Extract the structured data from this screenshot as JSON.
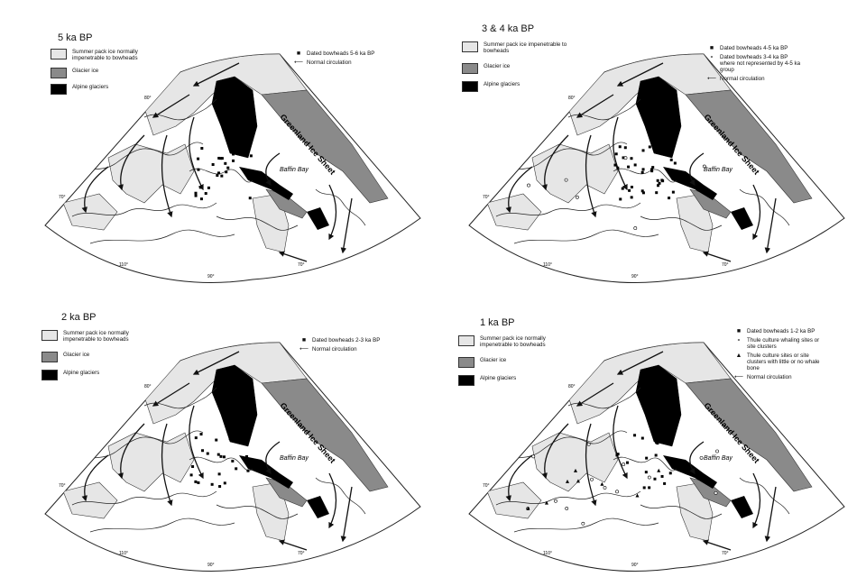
{
  "colors": {
    "pack_ice": "#e6e6e6",
    "glacier_ice": "#8a8a8a",
    "alpine": "#000000",
    "coast": "#222222",
    "background": "#ffffff"
  },
  "place_labels": {
    "greenland": "Greenland Ice Sheet",
    "baffin_bay": "Baffin Bay"
  },
  "coordinates": {
    "lat_80": "80°",
    "lat_70": "70°",
    "lon_110": "110°",
    "lon_90": "90°",
    "lon_70": "70°"
  },
  "panels": [
    {
      "title": "5 ka BP",
      "legend": {
        "pack_ice": "Summer pack ice normally impenetrable to bowheads",
        "glacier_ice": "Glacier ice",
        "alpine": "Alpine glaciers"
      },
      "symbols": [
        {
          "icon": "black-square",
          "glyph": "■",
          "label": "Dated bowheads  5-6 ka BP"
        },
        {
          "icon": "arrow-left",
          "glyph": "⟵",
          "label": "Normal circulation"
        }
      ]
    },
    {
      "title": "3 & 4 ka BP",
      "legend": {
        "pack_ice": "Summer pack ice impenetrable to bowheads",
        "glacier_ice": "Glacier ice",
        "alpine": "Alpine glaciers"
      },
      "symbols": [
        {
          "icon": "black-square",
          "glyph": "■",
          "label": "Dated bowheads 4-5 ka BP"
        },
        {
          "icon": "open-circle",
          "glyph": "∘",
          "label": "Dated bowheads 3-4 ka BP where not represented by 4-5 ka group"
        },
        {
          "icon": "arrow-left",
          "glyph": "⟵",
          "label": "Normal circulation"
        }
      ]
    },
    {
      "title": "2 ka BP",
      "legend": {
        "pack_ice": "Summer pack ice normally impenetrable to bowheads",
        "glacier_ice": "Glacier ice",
        "alpine": "Alpine glaciers"
      },
      "symbols": [
        {
          "icon": "black-square",
          "glyph": "■",
          "label": "Dated bowheads 2-3 ka BP"
        },
        {
          "icon": "arrow-left",
          "glyph": "⟵",
          "label": "Normal circulation"
        }
      ]
    },
    {
      "title": "1 ka BP",
      "legend": {
        "pack_ice": "Summer pack ice normally impenetrable to bowheads",
        "glacier_ice": "Glacier ice",
        "alpine": "Alpine glaciers"
      },
      "symbols": [
        {
          "icon": "black-square",
          "glyph": "■",
          "label": "Dated bowheads 1-2 ka BP"
        },
        {
          "icon": "open-circle",
          "glyph": "∘",
          "label": "Thule culture whaling sites or site clusters"
        },
        {
          "icon": "triangle",
          "glyph": "▲",
          "label": "Thule culture sites or site clusters with little or no whale bone"
        },
        {
          "icon": "arrow-left",
          "glyph": "⟵",
          "label": "Normal circulation"
        }
      ]
    }
  ]
}
